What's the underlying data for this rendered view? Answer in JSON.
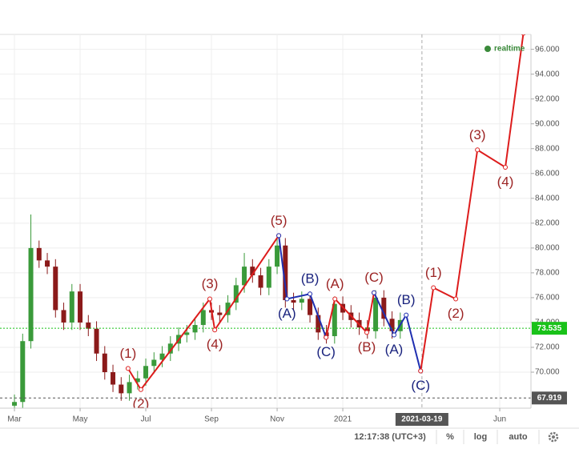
{
  "chart_data": {
    "type": "candlestick",
    "status": "realtime",
    "xlim": [
      -0.44,
      15.73
    ],
    "xticks": [
      {
        "value": 0,
        "label": "Mar"
      },
      {
        "value": 2,
        "label": "May"
      },
      {
        "value": 4,
        "label": "Jul"
      },
      {
        "value": 6,
        "label": "Sep"
      },
      {
        "value": 8,
        "label": "Nov"
      },
      {
        "value": 10,
        "label": "2021"
      },
      {
        "value": 14.78,
        "label": "Jun"
      }
    ],
    "crosshair_x": {
      "value": 12.41,
      "label": "2021-03-19"
    },
    "ylim": [
      67.1,
      97.2
    ],
    "yticks": [
      {
        "value": 70,
        "label": "70.000"
      },
      {
        "value": 72,
        "label": "72.000"
      },
      {
        "value": 74,
        "label": "74.000"
      },
      {
        "value": 76,
        "label": "76.000"
      },
      {
        "value": 78,
        "label": "78.000"
      },
      {
        "value": 80,
        "label": "80.000"
      },
      {
        "value": 82,
        "label": "82.000"
      },
      {
        "value": 84,
        "label": "84.000"
      },
      {
        "value": 86,
        "label": "86.000"
      },
      {
        "value": 88,
        "label": "88.000"
      },
      {
        "value": 90,
        "label": "90.000"
      },
      {
        "value": 92,
        "label": "92.000"
      },
      {
        "value": 94,
        "label": "94.000"
      },
      {
        "value": 96,
        "label": "96.000"
      }
    ],
    "current_price": {
      "value": 73.535,
      "label": "73.535",
      "color": "#19c219"
    },
    "low_line": {
      "value": 67.919,
      "label": "67.919",
      "color": "#555555"
    },
    "up_color": "#3a9a3a",
    "down_color": "#8b1a1a",
    "x": [
      0,
      0.25,
      0.5,
      0.75,
      1,
      1.25,
      1.5,
      1.75,
      2,
      2.25,
      2.5,
      2.75,
      3,
      3.25,
      3.5,
      3.75,
      4,
      4.25,
      4.5,
      4.75,
      5,
      5.25,
      5.5,
      5.75,
      6,
      6.25,
      6.5,
      6.75,
      7,
      7.25,
      7.5,
      7.75,
      8,
      8.25,
      8.5,
      8.75,
      9,
      9.25,
      9.5,
      9.75,
      10,
      10.25,
      10.5,
      10.75,
      11,
      11.25,
      11.5,
      11.75
    ],
    "open": [
      67.3,
      67.6,
      72.5,
      80,
      79,
      78.5,
      75,
      74,
      76.5,
      74,
      73.5,
      71.5,
      70,
      69,
      68.3,
      69.2,
      69.5,
      70.5,
      71,
      71.5,
      72.3,
      73,
      73.2,
      73.8,
      75,
      74.8,
      74.6,
      75.6,
      77,
      78.5,
      77.8,
      76.8,
      78.5,
      80.2,
      75.8,
      75.6,
      75.9,
      74.6,
      73.2,
      72.9,
      75.5,
      74.8,
      74.2,
      73.6,
      73.3,
      76,
      74.3,
      73.3
    ],
    "high": [
      68.2,
      73.1,
      82.7,
      80.6,
      79.6,
      79.1,
      75.6,
      77.1,
      77.1,
      74.6,
      74.1,
      72.1,
      70.6,
      69.6,
      69.8,
      70.1,
      71.1,
      71.6,
      72.1,
      72.9,
      73.6,
      73.8,
      74.4,
      75.6,
      75.6,
      75.4,
      76.2,
      77.6,
      79.6,
      79.1,
      78.4,
      79.1,
      81,
      80.8,
      76.4,
      76.5,
      76.5,
      75.2,
      73.8,
      76.1,
      76.1,
      75.4,
      74.8,
      74.2,
      76.6,
      76.6,
      74.9,
      74.8
    ],
    "low": [
      66.7,
      67,
      71.9,
      78.4,
      77.9,
      74.4,
      73.4,
      73.4,
      73.4,
      72.9,
      70.9,
      69.4,
      68.4,
      67.7,
      67.7,
      68.6,
      68.9,
      69.9,
      70.4,
      70.9,
      71.7,
      72.4,
      72.6,
      73.2,
      74.2,
      74,
      74,
      75,
      76.4,
      77.2,
      76.2,
      76.2,
      77.9,
      75.2,
      75,
      75,
      74,
      72.6,
      72.3,
      72.3,
      74.2,
      73.6,
      73,
      72.7,
      72.7,
      73.7,
      72.7,
      72.7
    ],
    "close": [
      67.6,
      72.5,
      80,
      79,
      78.5,
      75,
      74,
      76.5,
      74,
      73.5,
      71.5,
      70,
      69,
      68.3,
      69.2,
      69.5,
      70.5,
      71,
      71.5,
      72.3,
      73,
      73.2,
      73.8,
      75,
      74.8,
      74.6,
      75.6,
      77,
      78.5,
      77.8,
      76.8,
      78.5,
      80.2,
      75.8,
      75.6,
      75.9,
      74.6,
      73.2,
      72.9,
      75.5,
      74.8,
      74.2,
      73.6,
      73.3,
      76,
      74.3,
      73.3,
      74.2
    ],
    "waves": [
      {
        "color": "#dd1c1c",
        "label_color": "#9c2424",
        "x": [
          3.46,
          3.85,
          5.95,
          6.1,
          8.05
        ],
        "values": [
          70.3,
          68.6,
          75.9,
          73.4,
          81.0
        ],
        "labels": [
          "(1)",
          "(2)",
          "(3)",
          "(4)",
          "(5)"
        ]
      },
      {
        "color": "#1f2fb0",
        "label_color": "#1a237e",
        "x": [
          8.05,
          8.3,
          9.0,
          9.49
        ],
        "values": [
          81.0,
          75.9,
          76.3,
          72.8
        ],
        "labels": [
          null,
          "(A)",
          "(B)",
          "(C)"
        ]
      },
      {
        "color": "#dd1c1c",
        "label_color": "#9c2424",
        "x": [
          9.49,
          9.76,
          10.73,
          10.95
        ],
        "values": [
          72.8,
          75.9,
          73.2,
          76.4
        ],
        "labels": [
          null,
          "(A)",
          "(B)",
          "(C)"
        ]
      },
      {
        "color": "#1f2fb0",
        "label_color": "#1a237e",
        "x": [
          10.95,
          11.56,
          11.93,
          12.37
        ],
        "values": [
          76.4,
          73.0,
          74.6,
          70.1
        ],
        "labels": [
          null,
          "(A)",
          "(B)",
          "(C)"
        ]
      },
      {
        "color": "#dd1c1c",
        "label_color": "#9c2424",
        "x": [
          12.37,
          12.76,
          13.44,
          14.1,
          14.95,
          15.5
        ],
        "values": [
          70.1,
          76.8,
          75.9,
          87.9,
          86.5,
          97.3
        ],
        "labels": [
          null,
          "(1)",
          "(2)",
          "(3)",
          "(4)",
          null
        ]
      }
    ]
  },
  "toolbar": {
    "clock": "12:17:38 (UTC+3)",
    "buttons": [
      "%",
      "log",
      "auto"
    ]
  }
}
